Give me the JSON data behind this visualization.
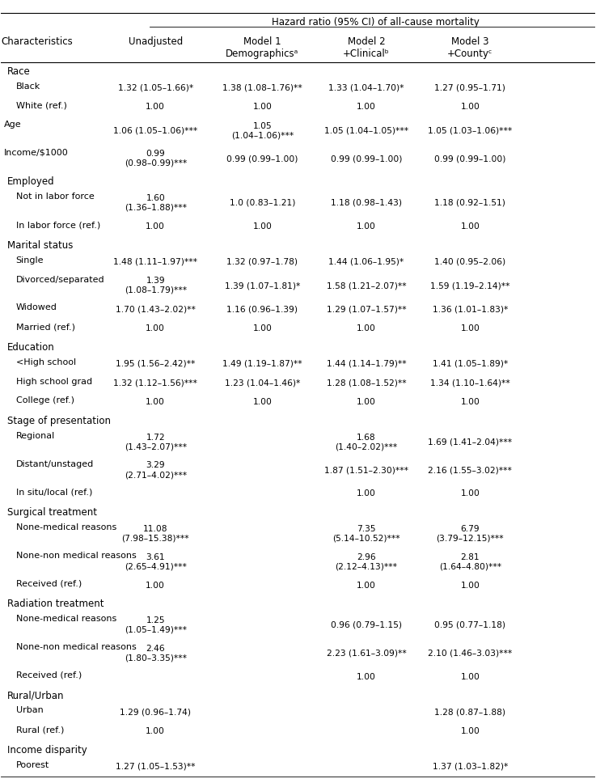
{
  "title": "Hazard ratio (95% CI) of all-cause mortality",
  "col_headers": [
    "",
    "Unadjusted",
    "Model 1\nDemographicsᵃ",
    "Model 2\n+Clinicalᵇ",
    "Model 3\n+Countyᶜ"
  ],
  "rows": [
    {
      "label": "Race",
      "type": "section",
      "indent": 0
    },
    {
      "label": "Black",
      "type": "data",
      "indent": 1,
      "values": [
        "1.32 (1.05–1.66)*",
        "1.38 (1.08–1.76)**",
        "1.33 (1.04–1.70)*",
        "1.27 (0.95–1.71)"
      ]
    },
    {
      "label": "White (ref.)",
      "type": "data",
      "indent": 1,
      "values": [
        "1.00",
        "1.00",
        "1.00",
        "1.00"
      ]
    },
    {
      "label": "Age",
      "type": "data",
      "indent": 0,
      "values": [
        "1.06 (1.05–1.06)***",
        "1.05\n(1.04–1.06)***",
        "1.05 (1.04–1.05)***",
        "1.05 (1.03–1.06)***"
      ]
    },
    {
      "label": "Income/$1000",
      "type": "data",
      "indent": 0,
      "values": [
        "0.99\n(0.98–0.99)***",
        "0.99 (0.99–1.00)",
        "0.99 (0.99–1.00)",
        "0.99 (0.99–1.00)"
      ]
    },
    {
      "label": "Employed",
      "type": "section",
      "indent": 0
    },
    {
      "label": "Not in labor force",
      "type": "data",
      "indent": 1,
      "values": [
        "1.60\n(1.36–1.88)***",
        "1.0 (0.83–1.21)",
        "1.18 (0.98–1.43)",
        "1.18 (0.92–1.51)"
      ]
    },
    {
      "label": "In labor force (ref.)",
      "type": "data",
      "indent": 1,
      "values": [
        "1.00",
        "1.00",
        "1.00",
        "1.00"
      ]
    },
    {
      "label": "Marital status",
      "type": "section",
      "indent": 0
    },
    {
      "label": "Single",
      "type": "data",
      "indent": 1,
      "values": [
        "1.48 (1.11–1.97)***",
        "1.32 (0.97–1.78)",
        "1.44 (1.06–1.95)*",
        "1.40 (0.95–2.06)"
      ]
    },
    {
      "label": "Divorced/separated",
      "type": "data",
      "indent": 1,
      "values": [
        "1.39\n(1.08–1.79)***",
        "1.39 (1.07–1.81)*",
        "1.58 (1.21–2.07)**",
        "1.59 (1.19–2.14)**"
      ]
    },
    {
      "label": "Widowed",
      "type": "data",
      "indent": 1,
      "values": [
        "1.70 (1.43–2.02)**",
        "1.16 (0.96–1.39)",
        "1.29 (1.07–1.57)**",
        "1.36 (1.01–1.83)*"
      ]
    },
    {
      "label": "Married (ref.)",
      "type": "data",
      "indent": 1,
      "values": [
        "1.00",
        "1.00",
        "1.00",
        "1.00"
      ]
    },
    {
      "label": "Education",
      "type": "section",
      "indent": 0
    },
    {
      "label": "<High school",
      "type": "data",
      "indent": 1,
      "values": [
        "1.95 (1.56–2.42)**",
        "1.49 (1.19–1.87)**",
        "1.44 (1.14–1.79)**",
        "1.41 (1.05–1.89)*"
      ]
    },
    {
      "label": "High school grad",
      "type": "data",
      "indent": 1,
      "values": [
        "1.32 (1.12–1.56)***",
        "1.23 (1.04–1.46)*",
        "1.28 (1.08–1.52)**",
        "1.34 (1.10–1.64)**"
      ]
    },
    {
      "label": "College (ref.)",
      "type": "data",
      "indent": 1,
      "values": [
        "1.00",
        "1.00",
        "1.00",
        "1.00"
      ]
    },
    {
      "label": "Stage of presentation",
      "type": "section",
      "indent": 0
    },
    {
      "label": "Regional",
      "type": "data",
      "indent": 1,
      "values": [
        "1.72\n(1.43–2.07)***",
        "",
        "1.68\n(1.40–2.02)***",
        "1.69 (1.41–2.04)***"
      ]
    },
    {
      "label": "Distant/unstaged",
      "type": "data",
      "indent": 1,
      "values": [
        "3.29\n(2.71–4.02)***",
        "",
        "1.87 (1.51–2.30)***",
        "2.16 (1.55–3.02)***"
      ]
    },
    {
      "label": "In situ/local (ref.)",
      "type": "data",
      "indent": 1,
      "values": [
        "",
        "",
        "1.00",
        "1.00"
      ]
    },
    {
      "label": "Surgical treatment",
      "type": "section",
      "indent": 0
    },
    {
      "label": "None-medical reasons",
      "type": "data",
      "indent": 1,
      "values": [
        "11.08\n(7.98–15.38)***",
        "",
        "7.35\n(5.14–10.52)***",
        "6.79\n(3.79–12.15)***"
      ]
    },
    {
      "label": "None-non medical reasons",
      "type": "data",
      "indent": 1,
      "values": [
        "3.61\n(2.65–4.91)***",
        "",
        "2.96\n(2.12–4.13)***",
        "2.81\n(1.64–4.80)***"
      ]
    },
    {
      "label": "Received (ref.)",
      "type": "data",
      "indent": 1,
      "values": [
        "1.00",
        "",
        "1.00",
        "1.00"
      ]
    },
    {
      "label": "Radiation treatment",
      "type": "section",
      "indent": 0
    },
    {
      "label": "None-medical reasons",
      "type": "data",
      "indent": 1,
      "values": [
        "1.25\n(1.05–1.49)***",
        "",
        "0.96 (0.79–1.15)",
        "0.95 (0.77–1.18)"
      ]
    },
    {
      "label": "None-non medical reasons",
      "type": "data",
      "indent": 1,
      "values": [
        "2.46\n(1.80–3.35)***",
        "",
        "2.23 (1.61–3.09)**",
        "2.10 (1.46–3.03)***"
      ]
    },
    {
      "label": "Received (ref.)",
      "type": "data",
      "indent": 1,
      "values": [
        "",
        "",
        "1.00",
        "1.00"
      ]
    },
    {
      "label": "Rural/Urban",
      "type": "section",
      "indent": 0
    },
    {
      "label": "Urban",
      "type": "data",
      "indent": 1,
      "values": [
        "1.29 (0.96–1.74)",
        "",
        "",
        "1.28 (0.87–1.88)"
      ]
    },
    {
      "label": "Rural (ref.)",
      "type": "data",
      "indent": 1,
      "values": [
        "1.00",
        "",
        "",
        "1.00"
      ]
    },
    {
      "label": "Income disparity",
      "type": "section",
      "indent": 0
    },
    {
      "label": "Poorest",
      "type": "data",
      "indent": 1,
      "values": [
        "1.27 (1.05–1.53)**",
        "",
        "",
        "1.37 (1.03–1.82)*"
      ]
    }
  ],
  "bg_color": "#ffffff",
  "text_color": "#000000",
  "section_font_size": 8.5,
  "data_font_size": 8.0,
  "header_font_size": 8.5
}
